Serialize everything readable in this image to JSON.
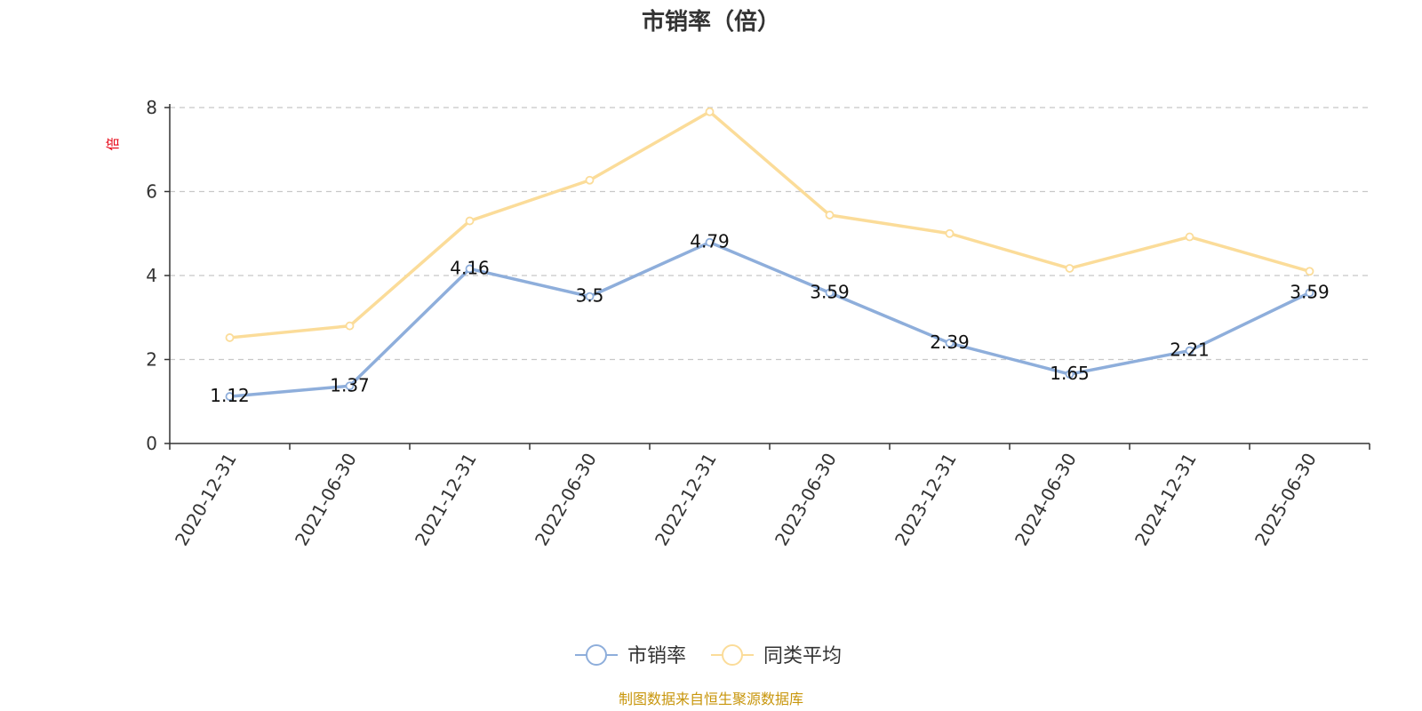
{
  "chart_data": {
    "type": "line",
    "title": "市销率（倍）",
    "ylabel": "倍",
    "xlabel": "",
    "ylim": [
      0,
      8
    ],
    "yticks": [
      0,
      2,
      4,
      6,
      8
    ],
    "grid": true,
    "legend_position": "bottom-center",
    "categories": [
      "2020-12-31",
      "2021-06-30",
      "2021-12-31",
      "2022-06-30",
      "2022-12-31",
      "2023-06-30",
      "2023-12-31",
      "2024-06-30",
      "2024-12-31",
      "2025-06-30"
    ],
    "series": [
      {
        "name": "市销率",
        "color": "#8eaedb",
        "values": [
          1.12,
          1.37,
          4.16,
          3.5,
          4.79,
          3.59,
          2.39,
          1.65,
          2.21,
          3.59
        ],
        "labels": [
          "1.12",
          "1.37",
          "4.16",
          "3.5",
          "4.79",
          "3.59",
          "2.39",
          "1.65",
          "2.21",
          "3.59"
        ]
      },
      {
        "name": "同类平均",
        "color": "#fbdc99",
        "values": [
          2.52,
          2.8,
          5.3,
          6.27,
          7.9,
          5.44,
          5.0,
          4.17,
          4.92,
          4.1
        ]
      }
    ]
  },
  "source_note": "制图数据来自恒生聚源数据库"
}
